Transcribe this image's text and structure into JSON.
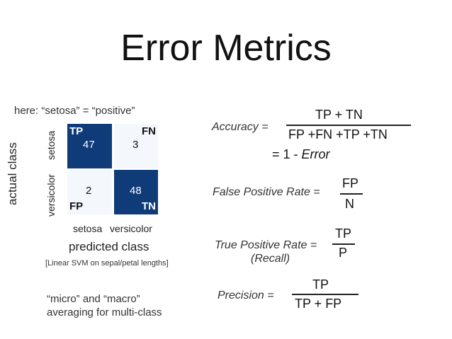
{
  "slide": {
    "title": "Error Metrics",
    "note_positive": "here: “setosa” =  “positive”",
    "note_svm": "[Linear SVM on sepal/petal lengths]",
    "note_averaging_1": "“micro” and “macro”",
    "note_averaging_2": "averaging for multi-class"
  },
  "confusion_matrix": {
    "y_title": "actual class",
    "y_ticks": [
      "setosa",
      "versicolor"
    ],
    "x_title": "predicted class",
    "x_ticks": [
      "setosa",
      "versicolor"
    ],
    "cells": [
      {
        "tag": "TP",
        "value": "47",
        "shade": "dark"
      },
      {
        "tag": "FN",
        "value": "3",
        "shade": "light"
      },
      {
        "tag": "FP",
        "value": "2",
        "shade": "light"
      },
      {
        "tag": "TN",
        "value": "48",
        "shade": "dark"
      }
    ],
    "colors": {
      "dark": "#0f3b79",
      "light": "#f4f8fd"
    }
  },
  "formulas": {
    "accuracy": {
      "label": "Accuracy =",
      "numerator": "TP + TN",
      "denominator": "FP +FN +TP +TN",
      "alt_prefix": "= 1 - ",
      "alt_term": "Error"
    },
    "fpr": {
      "label": "False Positive Rate =",
      "numerator": "FP",
      "denominator": "N"
    },
    "tpr": {
      "label": "True Positive Rate =",
      "sublabel": "(Recall)",
      "numerator": "TP",
      "denominator": "P"
    },
    "precision": {
      "label": "Precision =",
      "numerator": "TP",
      "denominator": "TP + FP"
    }
  }
}
